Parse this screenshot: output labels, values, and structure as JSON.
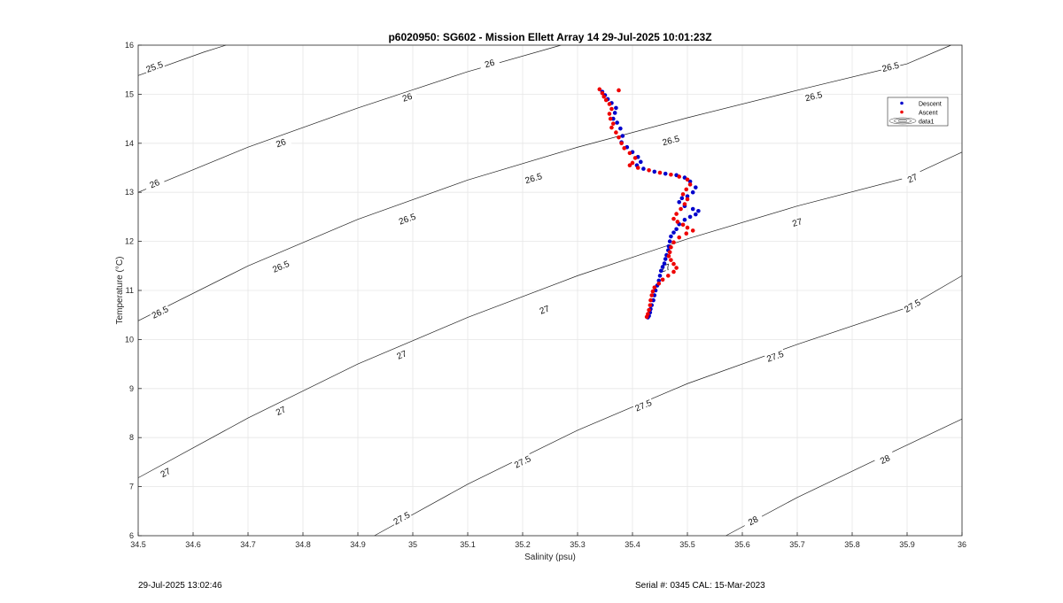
{
  "chart_data": {
    "type": "scatter",
    "title": "p6020950: SG602 - Mission Ellett Array 14 29-Jul-2025 10:01:23Z",
    "xlabel": "Salinity (psu)",
    "ylabel": "Temperature (°C)",
    "xlim": [
      34.5,
      36
    ],
    "ylim": [
      6,
      16
    ],
    "xticks": [
      "34.5",
      "34.6",
      "34.7",
      "34.8",
      "34.9",
      "35",
      "35.1",
      "35.2",
      "35.3",
      "35.4",
      "35.5",
      "35.6",
      "35.7",
      "35.8",
      "35.9",
      "36"
    ],
    "yticks": [
      "6",
      "7",
      "8",
      "9",
      "10",
      "11",
      "12",
      "13",
      "14",
      "15",
      "16"
    ],
    "grid": true,
    "legend_position": "top-right",
    "legend": [
      "Descent",
      "Ascent",
      "data1"
    ],
    "series": [
      {
        "name": "Descent",
        "color": "#0000cc",
        "points": [
          [
            35.345,
            15.05
          ],
          [
            35.35,
            14.98
          ],
          [
            35.355,
            14.9
          ],
          [
            35.362,
            14.82
          ],
          [
            35.37,
            14.72
          ],
          [
            35.368,
            14.62
          ],
          [
            35.365,
            14.5
          ],
          [
            35.372,
            14.42
          ],
          [
            35.378,
            14.3
          ],
          [
            35.382,
            14.15
          ],
          [
            35.38,
            14.02
          ],
          [
            35.39,
            13.92
          ],
          [
            35.4,
            13.82
          ],
          [
            35.41,
            13.72
          ],
          [
            35.415,
            13.62
          ],
          [
            35.408,
            13.55
          ],
          [
            35.42,
            13.48
          ],
          [
            35.44,
            13.42
          ],
          [
            35.46,
            13.38
          ],
          [
            35.48,
            13.35
          ],
          [
            35.495,
            13.3
          ],
          [
            35.505,
            13.22
          ],
          [
            35.515,
            13.1
          ],
          [
            35.51,
            13.0
          ],
          [
            35.5,
            12.92
          ],
          [
            35.49,
            12.88
          ],
          [
            35.485,
            12.8
          ],
          [
            35.495,
            12.72
          ],
          [
            35.51,
            12.66
          ],
          [
            35.52,
            12.62
          ],
          [
            35.515,
            12.55
          ],
          [
            35.505,
            12.5
          ],
          [
            35.495,
            12.44
          ],
          [
            35.485,
            12.35
          ],
          [
            35.48,
            12.25
          ],
          [
            35.475,
            12.18
          ],
          [
            35.47,
            12.1
          ],
          [
            35.468,
            12.0
          ],
          [
            35.466,
            11.9
          ],
          [
            35.465,
            11.82
          ],
          [
            35.462,
            11.72
          ],
          [
            35.46,
            11.64
          ],
          [
            35.458,
            11.55
          ],
          [
            35.455,
            11.48
          ],
          [
            35.452,
            11.4
          ],
          [
            35.45,
            11.3
          ],
          [
            35.448,
            11.2
          ],
          [
            35.445,
            11.1
          ],
          [
            35.442,
            11.0
          ],
          [
            35.44,
            10.9
          ],
          [
            35.438,
            10.8
          ],
          [
            35.435,
            10.7
          ],
          [
            35.433,
            10.62
          ],
          [
            35.432,
            10.55
          ],
          [
            35.43,
            10.48
          ],
          [
            35.428,
            10.45
          ]
        ]
      },
      {
        "name": "Ascent",
        "color": "#ee0000",
        "points": [
          [
            35.34,
            15.1
          ],
          [
            35.345,
            15.02
          ],
          [
            35.348,
            14.95
          ],
          [
            35.352,
            14.88
          ],
          [
            35.358,
            14.8
          ],
          [
            35.375,
            15.08
          ],
          [
            35.362,
            14.7
          ],
          [
            35.358,
            14.6
          ],
          [
            35.36,
            14.5
          ],
          [
            35.365,
            14.4
          ],
          [
            35.362,
            14.32
          ],
          [
            35.37,
            14.22
          ],
          [
            35.375,
            14.12
          ],
          [
            35.38,
            14.0
          ],
          [
            35.385,
            13.9
          ],
          [
            35.395,
            13.8
          ],
          [
            35.405,
            13.7
          ],
          [
            35.4,
            13.6
          ],
          [
            35.395,
            13.55
          ],
          [
            35.41,
            13.5
          ],
          [
            35.43,
            13.45
          ],
          [
            35.45,
            13.4
          ],
          [
            35.47,
            13.36
          ],
          [
            35.485,
            13.32
          ],
          [
            35.5,
            13.26
          ],
          [
            35.505,
            13.16
          ],
          [
            35.498,
            13.06
          ],
          [
            35.492,
            12.96
          ],
          [
            35.5,
            12.86
          ],
          [
            35.495,
            12.76
          ],
          [
            35.488,
            12.66
          ],
          [
            35.48,
            12.56
          ],
          [
            35.475,
            12.46
          ],
          [
            35.482,
            12.4
          ],
          [
            35.492,
            12.34
          ],
          [
            35.5,
            12.28
          ],
          [
            35.51,
            12.22
          ],
          [
            35.498,
            12.16
          ],
          [
            35.485,
            12.08
          ],
          [
            35.475,
            11.98
          ],
          [
            35.47,
            11.88
          ],
          [
            35.468,
            11.78
          ],
          [
            35.466,
            11.7
          ],
          [
            35.47,
            11.62
          ],
          [
            35.475,
            11.54
          ],
          [
            35.48,
            11.46
          ],
          [
            35.475,
            11.38
          ],
          [
            35.465,
            11.3
          ],
          [
            35.455,
            11.22
          ],
          [
            35.448,
            11.14
          ],
          [
            35.44,
            11.06
          ],
          [
            35.437,
            10.98
          ],
          [
            35.435,
            10.9
          ],
          [
            35.433,
            10.8
          ],
          [
            35.432,
            10.7
          ],
          [
            35.43,
            10.6
          ],
          [
            35.428,
            10.52
          ],
          [
            35.426,
            10.46
          ]
        ]
      }
    ],
    "contours": [
      {
        "label": "25.5",
        "points": [
          [
            34.5,
            15.38
          ],
          [
            34.62,
            15.86
          ],
          [
            34.66,
            16.0
          ]
        ],
        "label_at": [
          34.53,
          15.55
        ]
      },
      {
        "label": "26",
        "points": [
          [
            34.5,
            13.0
          ],
          [
            34.7,
            13.92
          ],
          [
            34.9,
            14.72
          ],
          [
            35.1,
            15.46
          ],
          [
            35.27,
            16.0
          ]
        ],
        "label_at": [
          [
            34.53,
            13.17
          ],
          [
            34.76,
            14.0
          ],
          [
            34.99,
            14.93
          ],
          [
            35.14,
            15.62
          ]
        ]
      },
      {
        "label": "26.5",
        "points": [
          [
            34.5,
            10.38
          ],
          [
            34.7,
            11.5
          ],
          [
            34.9,
            12.45
          ],
          [
            35.1,
            13.25
          ],
          [
            35.3,
            13.92
          ],
          [
            35.5,
            14.52
          ],
          [
            35.7,
            15.08
          ],
          [
            35.9,
            15.62
          ],
          [
            35.98,
            16.0
          ]
        ],
        "label_at": [
          [
            34.54,
            10.55
          ],
          [
            34.76,
            11.48
          ],
          [
            34.99,
            12.45
          ],
          [
            35.22,
            13.28
          ],
          [
            35.47,
            14.05
          ],
          [
            35.73,
            14.95
          ],
          [
            35.87,
            15.55
          ]
        ]
      },
      {
        "label": "27",
        "points": [
          [
            34.5,
            7.18
          ],
          [
            34.7,
            8.4
          ],
          [
            34.9,
            9.5
          ],
          [
            35.1,
            10.45
          ],
          [
            35.3,
            11.3
          ],
          [
            35.5,
            12.05
          ],
          [
            35.7,
            12.72
          ],
          [
            35.9,
            13.3
          ],
          [
            36.0,
            13.82
          ]
        ],
        "label_at": [
          [
            34.55,
            7.28
          ],
          [
            34.76,
            8.54
          ],
          [
            34.98,
            9.68
          ],
          [
            35.24,
            10.6
          ],
          [
            35.46,
            11.45
          ],
          [
            35.7,
            12.38
          ],
          [
            35.91,
            13.28
          ]
        ]
      },
      {
        "label": "27.5",
        "points": [
          [
            34.93,
            6.0
          ],
          [
            35.1,
            7.05
          ],
          [
            35.3,
            8.15
          ],
          [
            35.5,
            9.1
          ],
          [
            35.7,
            9.9
          ],
          [
            35.9,
            10.65
          ],
          [
            36.0,
            11.3
          ]
        ],
        "label_at": [
          [
            34.98,
            6.35
          ],
          [
            35.2,
            7.5
          ],
          [
            35.42,
            8.65
          ],
          [
            35.66,
            9.65
          ],
          [
            35.91,
            10.68
          ]
        ]
      },
      {
        "label": "28",
        "points": [
          [
            35.57,
            6.0
          ],
          [
            35.7,
            6.78
          ],
          [
            35.9,
            7.85
          ],
          [
            36.0,
            8.38
          ]
        ],
        "label_at": [
          [
            35.62,
            6.3
          ],
          [
            35.86,
            7.55
          ]
        ]
      }
    ]
  },
  "footer": {
    "timestamp": "29-Jul-2025 13:02:46",
    "serial": "Serial #: 0345  CAL: 15-Mar-2023"
  }
}
